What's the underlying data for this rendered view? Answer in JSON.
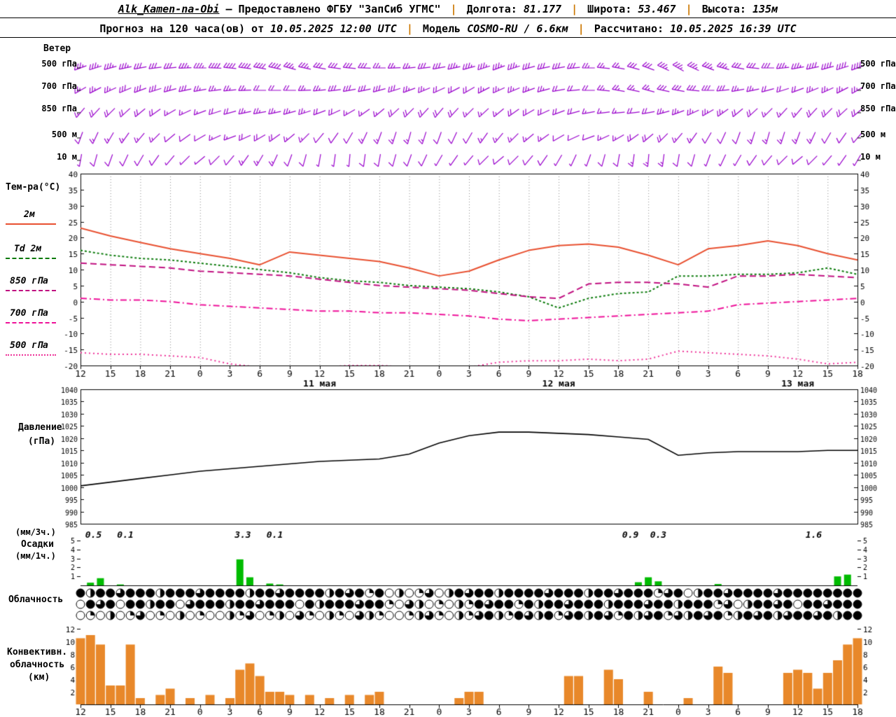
{
  "header": {
    "station": "Alk_Kamen-na-Obi",
    "provided": "— Предоставлено ФГБУ \"ЗапСиб УГМС\"",
    "sep": "|",
    "lon_label": "Долгота:",
    "lon_value": "81.177",
    "lat_label": "Широта:",
    "lat_value": "53.467",
    "alt_label": "Высота:",
    "alt_value": "135м",
    "forecast_label": "Прогноз на 120 часа(ов) от",
    "forecast_value": "10.05.2025 12:00 UTC",
    "model_label": "Модель",
    "model_value": "COSMO-RU / 6.6км",
    "calc_label": "Рассчитано:",
    "calc_value": "10.05.2025 16:39 UTC"
  },
  "labels": {
    "wind": "Ветер",
    "wind_levels": [
      "500 гПа",
      "700 гПа",
      "850 гПа",
      "500 м",
      "10 м"
    ],
    "temp_title": "Тем-ра(°C)",
    "pressure_line1": "Давление",
    "pressure_line2": "(гПа)",
    "precip_line1": "(мм/3ч.)",
    "precip_line2": "Осадки",
    "precip_line3": "(мм/1ч.)",
    "cloud": "Облачность",
    "conv_line1": "Конвективн.",
    "conv_line2": "облачность",
    "conv_line3": "(км)"
  },
  "colors": {
    "wind": "#9900cc",
    "pressure": "#000000",
    "precip": "#00bb00",
    "convective": "#e8882a",
    "grid": "#888888",
    "axis": "#000000",
    "separator": "#cc7700"
  },
  "chart_data": {
    "x_hour_labels": [
      "12",
      "15",
      "18",
      "21",
      "0",
      "3",
      "6",
      "9",
      "12",
      "15",
      "18",
      "21",
      "0",
      "3",
      "6",
      "9",
      "12",
      "15",
      "18",
      "21",
      "0",
      "3",
      "6",
      "9",
      "12",
      "15",
      "18"
    ],
    "date_labels": [
      [
        24,
        "11 мая"
      ],
      [
        48,
        "12 мая"
      ],
      [
        72,
        "13 мая"
      ]
    ],
    "temperature": {
      "type": "line",
      "ylim": [
        -20,
        40
      ],
      "yticks": [
        40,
        35,
        30,
        25,
        20,
        15,
        10,
        5,
        0,
        -5,
        -10,
        -15,
        -20
      ],
      "series": [
        {
          "name": "2м",
          "color": "#e85030",
          "dash": [],
          "width": 2,
          "values": [
            23,
            20.5,
            18.5,
            16.5,
            15,
            13.5,
            11.5,
            15.5,
            14.5,
            13.5,
            12.5,
            10.5,
            8,
            9.5,
            13,
            16,
            17.5,
            18,
            17,
            14.5,
            11.5,
            16.5,
            17.5,
            19,
            17.5,
            15,
            13
          ]
        },
        {
          "name": "Td 2м",
          "color": "#0a7a0a",
          "dash": [
            3,
            3
          ],
          "width": 2,
          "values": [
            16,
            14.5,
            13.5,
            13,
            12,
            11,
            10,
            9,
            7.5,
            6.5,
            6,
            5,
            4.5,
            4,
            3,
            1.5,
            -2,
            1,
            2.5,
            3,
            8,
            8,
            8.5,
            8.5,
            9,
            10.5,
            8.5
          ]
        },
        {
          "name": "850 гПа",
          "color": "#c01080",
          "dash": [
            9,
            5
          ],
          "width": 2,
          "values": [
            12,
            11.5,
            11,
            10.5,
            9.5,
            9,
            8.5,
            8,
            7,
            6,
            5,
            4.5,
            4,
            3.5,
            2.5,
            1.5,
            1,
            5.5,
            6,
            6,
            5.5,
            4.5,
            8,
            8,
            8.5,
            8,
            7.5
          ]
        },
        {
          "name": "700 гПа",
          "color": "#ee1199",
          "dash": [
            9,
            4,
            2,
            4
          ],
          "width": 2,
          "values": [
            1,
            0.5,
            0.5,
            0,
            -1,
            -1.5,
            -2,
            -2.5,
            -3,
            -3,
            -3.5,
            -3.5,
            -4,
            -4.5,
            -5.5,
            -6,
            -5.5,
            -5,
            -4.5,
            -4,
            -3.5,
            -3,
            -1,
            -0.5,
            0,
            0.5,
            1
          ]
        },
        {
          "name": "500 гПа",
          "color": "#ee3399",
          "dash": [
            2,
            4
          ],
          "width": 2,
          "values": [
            -16,
            -16.5,
            -16.5,
            -17,
            -17.5,
            -19.5,
            -20.5,
            -21,
            -20.5,
            -20,
            -20,
            -20.5,
            -21,
            -20.5,
            -19,
            -18.5,
            -18.5,
            -18,
            -18.5,
            -18,
            -15.5,
            -16,
            -16.5,
            -17,
            -18,
            -19.5,
            -19
          ]
        }
      ]
    },
    "pressure": {
      "type": "line",
      "ylim": [
        985,
        1040
      ],
      "yticks": [
        1040,
        1035,
        1030,
        1025,
        1020,
        1015,
        1010,
        1005,
        1000,
        995,
        990,
        985
      ],
      "values": [
        1000.5,
        1002,
        1003.5,
        1005,
        1006.5,
        1007.5,
        1008.5,
        1009.5,
        1010.5,
        1011,
        1011.5,
        1013.5,
        1018,
        1021,
        1022.5,
        1022.5,
        1022,
        1021.5,
        1020.5,
        1019.5,
        1013,
        1014,
        1014.5,
        1014.5,
        1014.5,
        1015,
        1015
      ]
    },
    "precipitation": {
      "type": "bar",
      "ylim": [
        0,
        5
      ],
      "yticks": [
        5,
        4,
        3,
        2,
        1
      ],
      "bars": [
        [
          1,
          0.3
        ],
        [
          2,
          0.8
        ],
        [
          4,
          0.1
        ],
        [
          16,
          2.9
        ],
        [
          17,
          0.9
        ],
        [
          19,
          0.2
        ],
        [
          20,
          0.1
        ],
        [
          56,
          0.35
        ],
        [
          57,
          0.9
        ],
        [
          58,
          0.45
        ],
        [
          64,
          0.15
        ],
        [
          76,
          1.0
        ],
        [
          77,
          1.2
        ]
      ],
      "labels": [
        [
          1.3,
          "0.5"
        ],
        [
          4.5,
          "0.1"
        ],
        [
          16.3,
          "3.3"
        ],
        [
          19.5,
          "0.1"
        ],
        [
          55.2,
          "0.9"
        ],
        [
          58,
          "0.3"
        ],
        [
          73.6,
          "1.6"
        ]
      ]
    },
    "cloudiness": {
      "type": "heatmap",
      "unit": "oktas (0-8), three layers, hourly",
      "rows": [
        [
          8,
          4,
          8,
          8,
          6,
          8,
          8,
          8,
          4,
          8,
          8,
          8,
          6,
          8,
          8,
          8,
          8,
          4,
          8,
          8,
          6,
          8,
          8,
          8,
          8,
          4,
          8,
          6,
          8,
          2,
          8,
          0,
          4,
          0,
          2,
          6,
          0,
          4,
          8,
          6,
          8,
          8,
          4,
          8,
          8,
          8,
          8,
          6,
          8,
          8,
          8,
          4,
          8,
          8,
          6,
          8,
          8,
          8,
          2,
          6,
          8,
          0,
          4,
          8,
          8,
          6,
          8,
          8,
          8,
          8,
          6,
          8,
          8,
          8,
          8,
          8,
          8,
          8,
          8
        ],
        [
          0,
          8,
          6,
          8,
          0,
          8,
          8,
          4,
          8,
          8,
          0,
          6,
          8,
          8,
          8,
          4,
          8,
          8,
          6,
          8,
          8,
          8,
          0,
          8,
          4,
          8,
          8,
          8,
          6,
          8,
          8,
          2,
          0,
          6,
          4,
          0,
          2,
          0,
          4,
          2,
          8,
          6,
          8,
          8,
          2,
          8,
          4,
          8,
          8,
          6,
          8,
          8,
          8,
          4,
          8,
          8,
          8,
          6,
          8,
          8,
          4,
          8,
          8,
          8,
          2,
          6,
          0,
          4,
          8,
          8,
          6,
          8,
          0,
          8,
          8,
          6,
          8,
          8,
          8
        ],
        [
          0,
          2,
          0,
          4,
          0,
          2,
          6,
          0,
          2,
          0,
          4,
          0,
          2,
          0,
          0,
          4,
          2,
          6,
          0,
          2,
          4,
          0,
          6,
          2,
          0,
          4,
          2,
          0,
          6,
          4,
          2,
          0,
          0,
          2,
          4,
          6,
          2,
          0,
          4,
          2,
          6,
          8,
          4,
          2,
          8,
          6,
          4,
          8,
          2,
          6,
          8,
          4,
          8,
          6,
          2,
          8,
          4,
          6,
          8,
          2,
          6,
          4,
          8,
          6,
          8,
          2,
          4,
          8,
          6,
          8,
          4,
          6,
          8,
          8,
          6,
          8,
          4,
          8,
          8
        ]
      ]
    },
    "convective": {
      "type": "bar",
      "ylim": [
        0,
        12
      ],
      "yticks": [
        12,
        10,
        8,
        6,
        4,
        2
      ],
      "bars": [
        [
          0,
          10.5
        ],
        [
          1,
          11
        ],
        [
          2,
          9.5
        ],
        [
          3,
          3
        ],
        [
          4,
          3
        ],
        [
          5,
          9.5
        ],
        [
          6,
          1
        ],
        [
          8,
          1.5
        ],
        [
          9,
          2.5
        ],
        [
          11,
          1
        ],
        [
          13,
          1.5
        ],
        [
          15,
          1
        ],
        [
          16,
          5.5
        ],
        [
          17,
          6.5
        ],
        [
          18,
          4.5
        ],
        [
          19,
          2
        ],
        [
          20,
          2
        ],
        [
          21,
          1.5
        ],
        [
          23,
          1.5
        ],
        [
          25,
          1
        ],
        [
          27,
          1.5
        ],
        [
          29,
          1.5
        ],
        [
          30,
          2
        ],
        [
          38,
          1
        ],
        [
          39,
          2
        ],
        [
          40,
          2
        ],
        [
          49,
          4.5
        ],
        [
          50,
          4.5
        ],
        [
          53,
          5.5
        ],
        [
          54,
          4
        ],
        [
          57,
          2
        ],
        [
          61,
          1
        ],
        [
          64,
          6
        ],
        [
          65,
          5
        ],
        [
          71,
          5
        ],
        [
          72,
          5.5
        ],
        [
          73,
          5
        ],
        [
          74,
          2.5
        ],
        [
          75,
          5
        ],
        [
          76,
          7
        ],
        [
          77,
          9.5
        ],
        [
          78,
          10.5
        ]
      ]
    },
    "wind_barbs": {
      "unit": "dir degrees-from / speed knots, every 3h",
      "levels": [
        {
          "name": "500 гПа",
          "dirs": [
            250,
            255,
            260,
            265,
            270,
            275,
            280,
            285,
            280,
            275,
            270,
            265,
            260,
            255,
            250,
            255,
            260,
            270,
            280,
            290,
            300,
            290,
            280,
            270,
            260,
            255,
            250
          ],
          "spds": [
            35,
            35,
            30,
            30,
            35,
            40,
            40,
            35,
            30,
            30,
            25,
            25,
            30,
            35,
            35,
            30,
            30,
            25,
            25,
            30,
            35,
            35,
            30,
            30,
            35,
            40,
            40
          ]
        },
        {
          "name": "700 гПа",
          "dirs": [
            240,
            245,
            250,
            255,
            260,
            265,
            270,
            270,
            265,
            260,
            255,
            250,
            245,
            240,
            245,
            250,
            260,
            270,
            280,
            285,
            280,
            270,
            260,
            255,
            250,
            245,
            240
          ],
          "spds": [
            25,
            25,
            30,
            30,
            25,
            25,
            20,
            20,
            25,
            30,
            30,
            25,
            20,
            20,
            25,
            25,
            20,
            20,
            25,
            25,
            30,
            30,
            25,
            20,
            20,
            25,
            25
          ]
        },
        {
          "name": "850 гПа",
          "dirs": [
            220,
            225,
            230,
            240,
            250,
            255,
            260,
            255,
            250,
            240,
            230,
            225,
            220,
            225,
            230,
            240,
            250,
            260,
            265,
            260,
            250,
            240,
            230,
            225,
            220,
            225,
            230
          ],
          "spds": [
            15,
            20,
            20,
            15,
            15,
            20,
            25,
            25,
            20,
            15,
            15,
            20,
            20,
            15,
            15,
            20,
            20,
            15,
            15,
            20,
            25,
            25,
            20,
            15,
            15,
            20,
            20
          ]
        },
        {
          "name": "500 м",
          "dirs": [
            200,
            210,
            220,
            230,
            240,
            250,
            240,
            230,
            220,
            210,
            200,
            195,
            200,
            210,
            220,
            230,
            240,
            250,
            240,
            230,
            220,
            210,
            200,
            195,
            200,
            210,
            220
          ],
          "spds": [
            10,
            15,
            15,
            10,
            10,
            15,
            20,
            15,
            10,
            10,
            15,
            15,
            10,
            10,
            15,
            15,
            10,
            10,
            15,
            20,
            15,
            10,
            10,
            15,
            15,
            10,
            10
          ]
        },
        {
          "name": "10 м",
          "dirs": [
            190,
            200,
            210,
            220,
            230,
            220,
            210,
            200,
            190,
            185,
            190,
            200,
            210,
            220,
            230,
            220,
            210,
            200,
            190,
            185,
            190,
            200,
            210,
            220,
            230,
            220,
            210
          ],
          "spds": [
            5,
            10,
            10,
            5,
            5,
            10,
            15,
            10,
            5,
            5,
            10,
            10,
            5,
            5,
            10,
            10,
            5,
            5,
            10,
            15,
            10,
            5,
            5,
            10,
            10,
            5,
            5
          ]
        }
      ]
    }
  }
}
